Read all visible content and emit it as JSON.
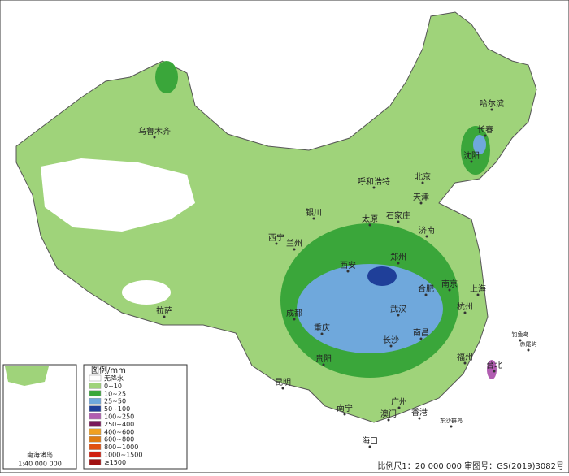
{
  "cities": [
    "乌鲁木齐",
    "哈尔滨",
    "长春",
    "沈阳",
    "呼和浩特",
    "北京",
    "天津",
    "石家庄",
    "太原",
    "济南",
    "银川",
    "西宁",
    "兰州",
    "郑州",
    "西安",
    "合肥",
    "南京",
    "上海",
    "杭州",
    "武汉",
    "成都",
    "重庆",
    "长沙",
    "南昌",
    "贵阳",
    "昆明",
    "福州",
    "台北",
    "南宁",
    "广州",
    "澳门",
    "香港",
    "海口",
    "拉萨",
    "钓鱼岛",
    "赤尾屿",
    "东沙群岛"
  ],
  "legend": {
    "title": "图例/mm",
    "items": [
      {
        "label": "无降水",
        "color": "#ffffff"
      },
      {
        "label": "0~10",
        "color": "#9fd37a"
      },
      {
        "label": "10~25",
        "color": "#3aa63a"
      },
      {
        "label": "25~50",
        "color": "#6fa8dc"
      },
      {
        "label": "50~100",
        "color": "#1f3f99"
      },
      {
        "label": "100~250",
        "color": "#b15db1"
      },
      {
        "label": "250~400",
        "color": "#7a1a5a"
      },
      {
        "label": "400~600",
        "color": "#f0a020"
      },
      {
        "label": "600~800",
        "color": "#e07b10"
      },
      {
        "label": "800~1000",
        "color": "#e05010"
      },
      {
        "label": "1000~1500",
        "color": "#d02010"
      },
      {
        "label": "≥1500",
        "color": "#a01010"
      }
    ]
  },
  "inset": {
    "label": "南海诸岛",
    "scale": "1:40 000 000"
  },
  "footer": "比例尺1：20 000 000  审图号：GS(2019)3082号"
}
